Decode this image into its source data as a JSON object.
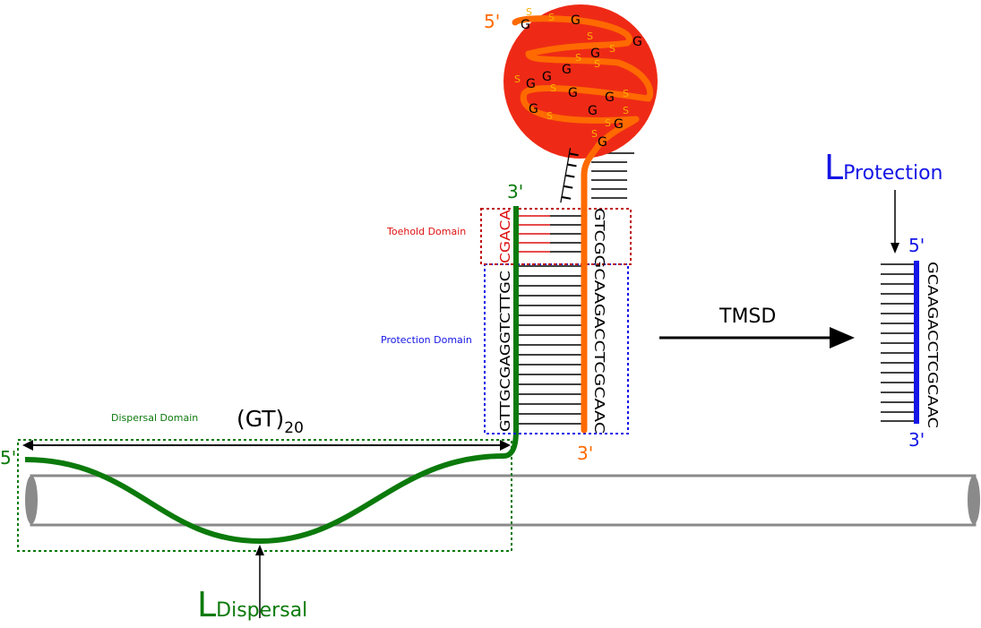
{
  "colors": {
    "green": "#0b7a0b",
    "orange": "#ff6a00",
    "blue": "#1515e6",
    "red": "#dd1111",
    "sphere": "#ee2a16",
    "grey": "#8a8a8a",
    "black": "#000000"
  },
  "labels": {
    "toehold_domain": "Toehold Domain",
    "protection_domain": "Protection Domain",
    "dispersal_domain": "Dispersal Domain",
    "gt_repeat": "(GT)",
    "gt_repeat_sub": "20",
    "tmsd": "TMSD",
    "l_protection_main": "L",
    "l_protection_sub": "Protection",
    "l_dispersal_main": "L",
    "l_dispersal_sub": "Dispersal"
  },
  "ends": {
    "green_5": "5'",
    "green_3": "3'",
    "orange_5": "5'",
    "orange_3": "3'",
    "blue_5": "5'",
    "blue_3": "3'"
  },
  "sequences": {
    "green_toehold": "CGACA",
    "green_protection": "GTTGCGAGGTCTTGC",
    "orange_strand": "GTCGGCAAGACCTCGCAAC",
    "linker": "TTTTT",
    "blue_strand": "GCAAGACCTCGCAAC"
  },
  "sphere_letters": {
    "g": "G",
    "s": "S"
  }
}
